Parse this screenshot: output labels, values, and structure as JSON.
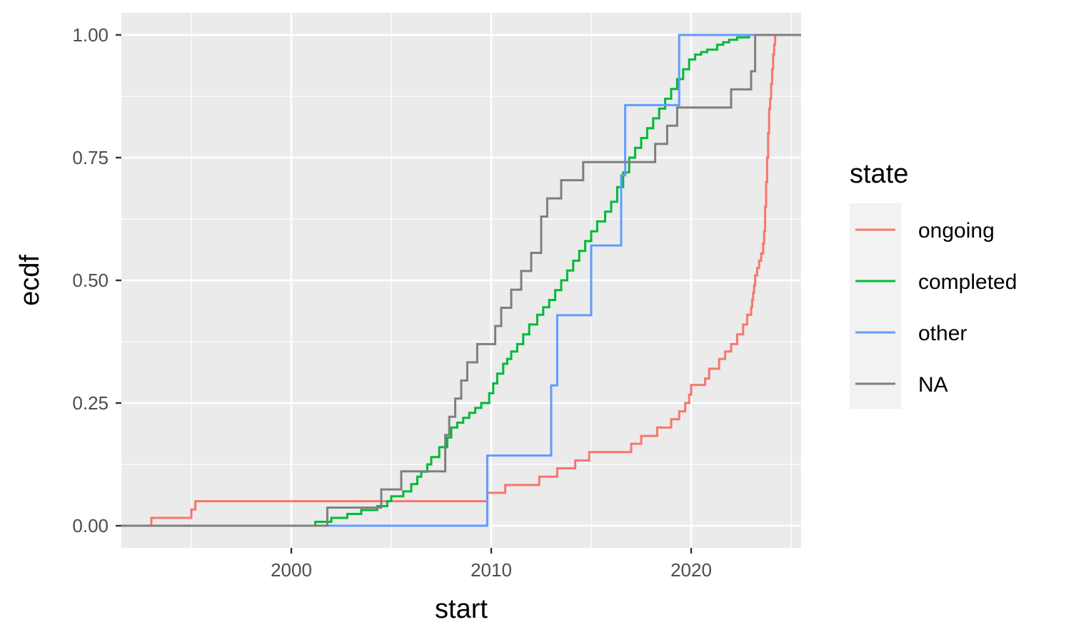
{
  "chart_data": {
    "type": "line",
    "step": true,
    "xlabel": "start",
    "ylabel": "ecdf",
    "xlim": [
      1991.5,
      2025.5
    ],
    "ylim": [
      -0.045,
      1.045
    ],
    "x_ticks": [
      2000,
      2010,
      2020
    ],
    "x_tick_labels": [
      "2000",
      "2010",
      "2020"
    ],
    "y_ticks": [
      0,
      0.25,
      0.5,
      0.75,
      1
    ],
    "y_tick_labels": [
      "0.00",
      "0.25",
      "0.50",
      "0.75",
      "1.00"
    ],
    "grid": true,
    "legend": {
      "title": "state",
      "position": "right"
    },
    "series": [
      {
        "name": "ongoing",
        "color": "#F8766D",
        "x": [
          1991.5,
          1993.0,
          1995.0,
          1995.2,
          2009.6,
          2009.8,
          2010.7,
          2011.0,
          2012.4,
          2012.9,
          2013.3,
          2013.6,
          2014.2,
          2014.9,
          2015.5,
          2016.5,
          2017.0,
          2017.5,
          2017.9,
          2018.3,
          2018.6,
          2019.0,
          2019.4,
          2019.7,
          2019.9,
          2020.0,
          2020.7,
          2020.9,
          2021.4,
          2021.7,
          2022.0,
          2022.3,
          2022.6,
          2022.8,
          2023.0,
          2023.05,
          2023.1,
          2023.15,
          2023.2,
          2023.3,
          2023.4,
          2023.5,
          2023.6,
          2023.65,
          2023.7,
          2023.75,
          2023.8,
          2023.85,
          2023.9,
          2023.95,
          2024.0,
          2024.05,
          2024.1,
          2024.15,
          2024.2,
          2025.5
        ],
        "y": [
          0,
          0.016,
          0.033,
          0.05,
          0.05,
          0.067,
          0.083,
          0.083,
          0.1,
          0.1,
          0.117,
          0.117,
          0.133,
          0.15,
          0.15,
          0.15,
          0.167,
          0.183,
          0.183,
          0.2,
          0.2,
          0.217,
          0.233,
          0.25,
          0.267,
          0.287,
          0.3,
          0.32,
          0.34,
          0.355,
          0.37,
          0.39,
          0.41,
          0.43,
          0.445,
          0.46,
          0.475,
          0.49,
          0.51,
          0.525,
          0.54,
          0.555,
          0.575,
          0.6,
          0.65,
          0.7,
          0.75,
          0.8,
          0.85,
          0.87,
          0.9,
          0.93,
          0.96,
          0.98,
          1.0,
          1.0
        ]
      },
      {
        "name": "completed",
        "color": "#00BA38",
        "x": [
          1991.5,
          2001.2,
          2002.0,
          2002.8,
          2003.5,
          2004.3,
          2004.8,
          2005.0,
          2005.6,
          2006.0,
          2006.3,
          2006.5,
          2006.8,
          2007.0,
          2007.4,
          2007.8,
          2008.0,
          2008.3,
          2008.6,
          2008.9,
          2009.2,
          2009.5,
          2009.9,
          2010.1,
          2010.3,
          2010.6,
          2010.8,
          2011.0,
          2011.3,
          2011.6,
          2011.9,
          2012.3,
          2012.6,
          2012.9,
          2013.2,
          2013.5,
          2013.8,
          2014.1,
          2014.4,
          2014.7,
          2015.0,
          2015.3,
          2015.7,
          2016.0,
          2016.3,
          2016.6,
          2016.9,
          2017.2,
          2017.5,
          2017.8,
          2018.1,
          2018.4,
          2018.7,
          2019.0,
          2019.3,
          2019.6,
          2019.9,
          2020.2,
          2020.5,
          2020.8,
          2021.3,
          2021.6,
          2021.9,
          2022.3,
          2022.9,
          2023.5
        ],
        "y": [
          0,
          0.008,
          0.016,
          0.024,
          0.032,
          0.04,
          0.05,
          0.06,
          0.07,
          0.085,
          0.1,
          0.11,
          0.125,
          0.14,
          0.16,
          0.18,
          0.2,
          0.21,
          0.22,
          0.23,
          0.24,
          0.25,
          0.27,
          0.29,
          0.31,
          0.33,
          0.34,
          0.355,
          0.37,
          0.39,
          0.41,
          0.43,
          0.445,
          0.46,
          0.48,
          0.5,
          0.52,
          0.54,
          0.56,
          0.58,
          0.6,
          0.62,
          0.64,
          0.66,
          0.69,
          0.72,
          0.75,
          0.77,
          0.79,
          0.81,
          0.83,
          0.85,
          0.87,
          0.89,
          0.91,
          0.93,
          0.95,
          0.96,
          0.965,
          0.97,
          0.98,
          0.985,
          0.99,
          0.995,
          1.0,
          1.0
        ]
      },
      {
        "name": "other",
        "color": "#619CFF",
        "x": [
          1991.5,
          2009.8,
          2013.0,
          2013.3,
          2015.0,
          2016.5,
          2016.7,
          2019.4,
          2023.5
        ],
        "y": [
          0,
          0.143,
          0.286,
          0.429,
          0.571,
          0.714,
          0.857,
          1.0,
          1.0
        ]
      },
      {
        "name": "NA",
        "color": "#7F7F7F",
        "x": [
          1991.5,
          2001.8,
          2004.5,
          2005.5,
          2007.7,
          2007.9,
          2008.2,
          2008.5,
          2008.8,
          2009.3,
          2010.2,
          2010.5,
          2011.0,
          2011.5,
          2012.0,
          2012.5,
          2012.8,
          2013.5,
          2014.6,
          2018.2,
          2018.8,
          2019.3,
          2022.0,
          2023.0,
          2023.2,
          2025.5
        ],
        "y": [
          0,
          0.037,
          0.074,
          0.111,
          0.185,
          0.222,
          0.259,
          0.296,
          0.333,
          0.37,
          0.407,
          0.444,
          0.481,
          0.519,
          0.556,
          0.63,
          0.667,
          0.704,
          0.741,
          0.778,
          0.815,
          0.852,
          0.889,
          0.926,
          1.0,
          1.0
        ]
      }
    ]
  }
}
